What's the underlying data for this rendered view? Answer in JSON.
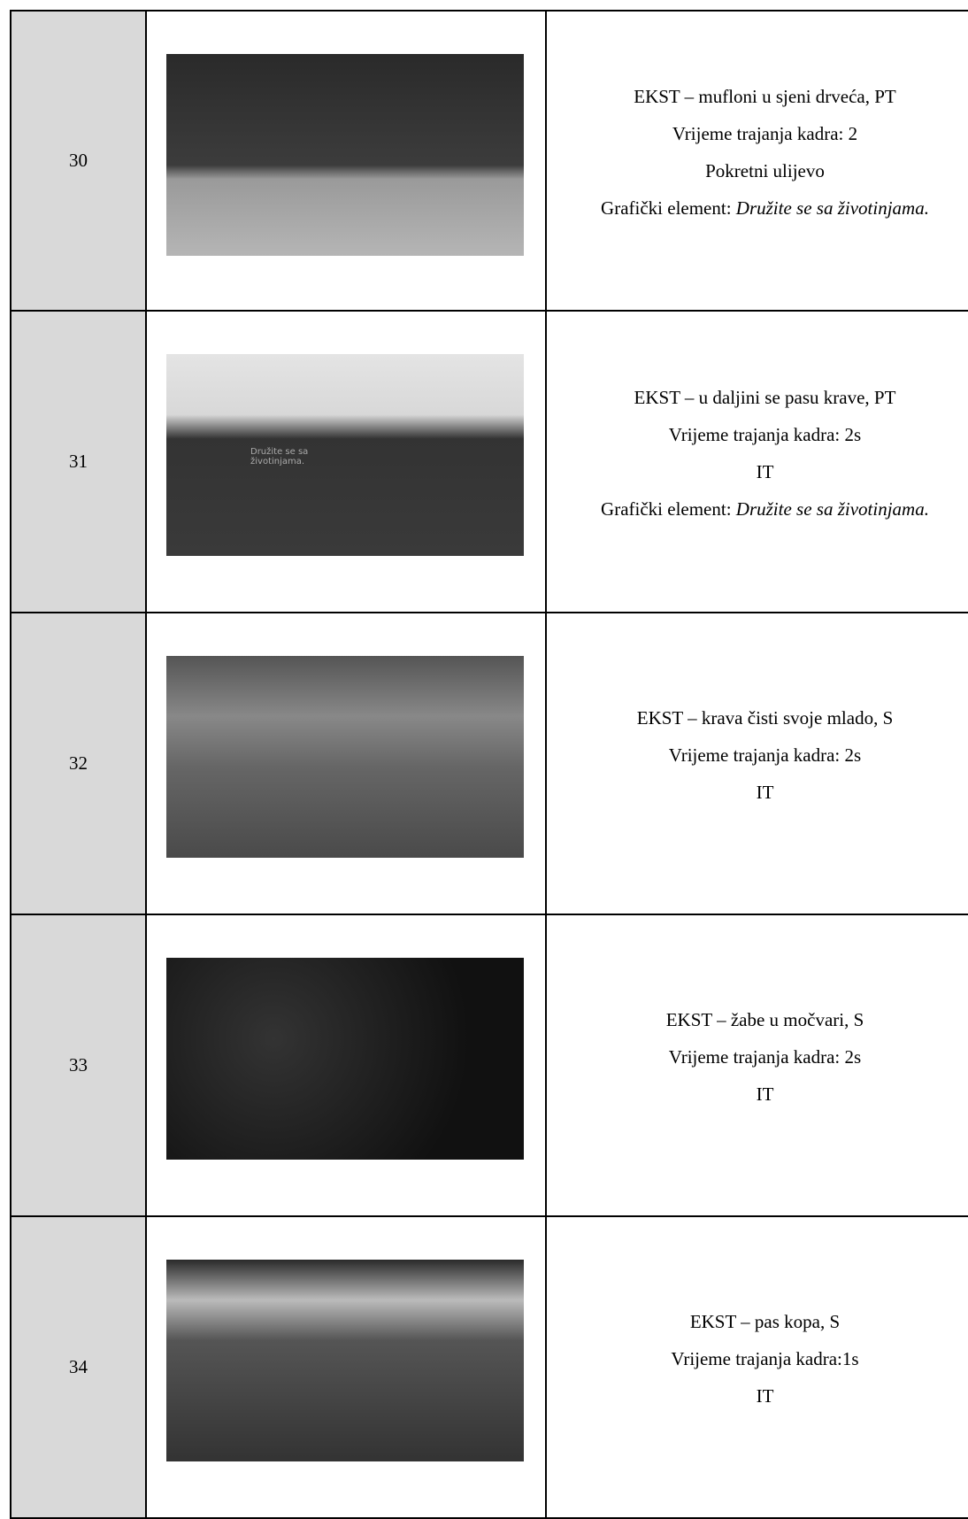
{
  "table": {
    "rows": [
      {
        "shot": "30",
        "lines": [
          "EKST – mufloni u sjeni drveća, PT",
          "Vrijeme trajanja kadra: 2",
          "Pokretni ulijevo"
        ],
        "graphic": {
          "label": "Grafički element:",
          "text": "Družite se sa životinjama."
        }
      },
      {
        "shot": "31",
        "lines": [
          "EKST – u daljini se pasu krave, PT",
          "Vrijeme trajanja kadra: 2s",
          "IT"
        ],
        "graphic": {
          "label": "Grafički element:",
          "text": "Družite se sa životinjama."
        }
      },
      {
        "shot": "32",
        "lines": [
          "EKST – krava čisti svoje mlado, S",
          "Vrijeme trajanja kadra: 2s",
          "IT"
        ]
      },
      {
        "shot": "33",
        "lines": [
          "EKST – žabe u močvari, S",
          "Vrijeme trajanja kadra: 2s",
          "IT"
        ]
      },
      {
        "shot": "34",
        "lines": [
          "EKST – pas kopa, S",
          "Vrijeme trajanja kadra:1s",
          "IT"
        ]
      }
    ]
  }
}
